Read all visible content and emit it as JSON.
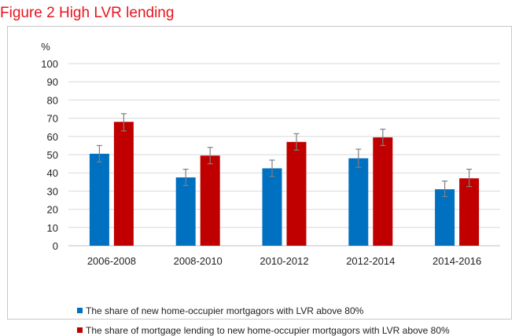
{
  "figure_title": "Figure 2 High LVR lending",
  "chart_data": {
    "type": "bar",
    "title": "Figure 2 High LVR lending",
    "ylabel": "%",
    "xlabel": "",
    "ylim": [
      0,
      100
    ],
    "yticks": [
      0,
      10,
      20,
      30,
      40,
      50,
      60,
      70,
      80,
      90,
      100
    ],
    "grid": true,
    "legend_position": "bottom",
    "categories": [
      "2006-2008",
      "2008-2010",
      "2010-2012",
      "2012-2014",
      "2014-2016"
    ],
    "series": [
      {
        "name": "The share of new home-occupier mortgagors with LVR above 80%",
        "color": "#0070c0",
        "values": [
          50.5,
          37.5,
          42.5,
          48,
          31
        ],
        "error_low": [
          46,
          33,
          38,
          43,
          27
        ],
        "error_high": [
          55,
          42,
          47,
          53,
          35.5
        ]
      },
      {
        "name": "The share of mortgage lending to new home-occupier mortgagors with LVR above 80%",
        "color": "#c00000",
        "values": [
          68,
          49.5,
          57,
          59.5,
          37
        ],
        "error_low": [
          63,
          45,
          52.5,
          55,
          32.5
        ],
        "error_high": [
          72.5,
          54,
          61.5,
          64,
          42
        ]
      }
    ]
  }
}
